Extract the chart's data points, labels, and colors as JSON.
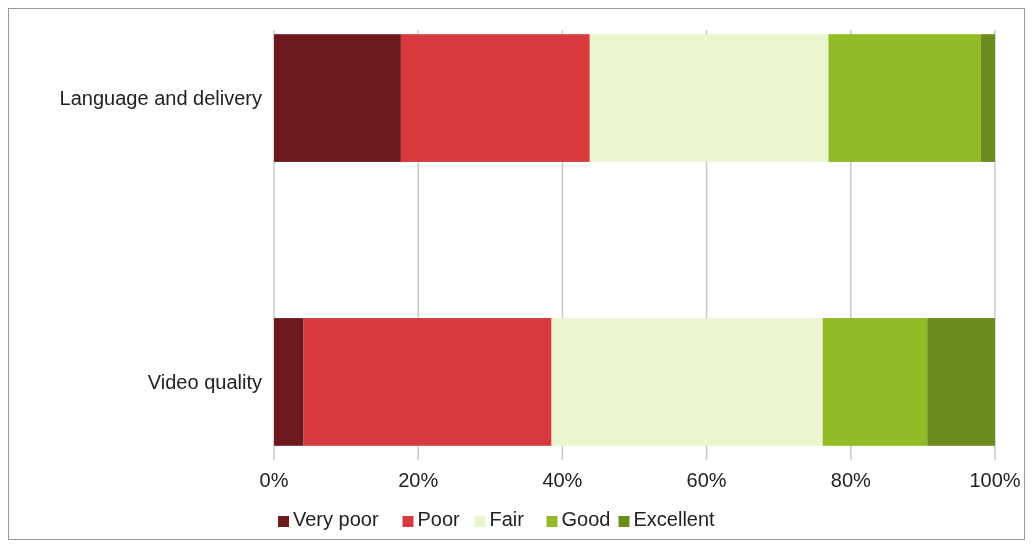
{
  "chart_data": {
    "type": "bar",
    "orientation": "horizontal",
    "stacked": true,
    "categories": [
      "Language and delivery",
      "Video quality"
    ],
    "series": [
      {
        "name": "Very poor",
        "color": "#6d1a1c",
        "values": [
          17.6,
          4.1
        ]
      },
      {
        "name": "Poor",
        "color": "#d63a3f",
        "values": [
          26.2,
          34.4
        ]
      },
      {
        "name": "Fair",
        "color": "#ebf5d0",
        "values": [
          33.1,
          37.6
        ]
      },
      {
        "name": "Good",
        "color": "#92bb25",
        "values": [
          21.1,
          14.5
        ]
      },
      {
        "name": "Excellent",
        "color": "#6b8c1d",
        "values": [
          2.0,
          9.4
        ]
      }
    ],
    "xlim": [
      0,
      100
    ],
    "xticks": [
      {
        "value": 0,
        "label": "0%"
      },
      {
        "value": 20,
        "label": "20%"
      },
      {
        "value": 40,
        "label": "40%"
      },
      {
        "value": 60,
        "label": "60%"
      },
      {
        "value": 80,
        "label": "80%"
      },
      {
        "value": 100,
        "label": "100%"
      }
    ],
    "grid": "x",
    "legend": "bottom"
  }
}
